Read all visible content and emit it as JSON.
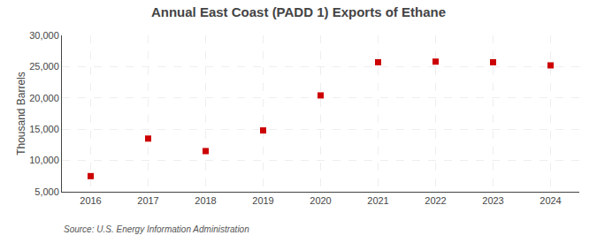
{
  "chart_data": {
    "type": "scatter",
    "title": "Annual East Coast (PADD 1) Exports of Ethane",
    "ylabel": "Thousand Barrels",
    "annotations": [
      "Source: U.S. Energy Information Administration"
    ],
    "x": [
      2016,
      2017,
      2018,
      2019,
      2020,
      2021,
      2022,
      2023,
      2024
    ],
    "values": [
      7500,
      13500,
      11500,
      14800,
      20400,
      25700,
      25800,
      25700,
      25200
    ],
    "color": "#cc0000",
    "marker": "square",
    "xlim": [
      2015.5,
      2024.5
    ],
    "xticks": [
      2016,
      2017,
      2018,
      2019,
      2020,
      2021,
      2022,
      2023,
      2024
    ],
    "ylim": [
      5000,
      30000
    ],
    "yticks": [
      {
        "value": 5000,
        "label": "5,000"
      },
      {
        "value": 10000,
        "label": "10,000"
      },
      {
        "value": 15000,
        "label": "15,000"
      },
      {
        "value": 20000,
        "label": "20,000"
      },
      {
        "value": 25000,
        "label": "25,000"
      },
      {
        "value": 30000,
        "label": "30,000"
      }
    ],
    "grid": true
  }
}
